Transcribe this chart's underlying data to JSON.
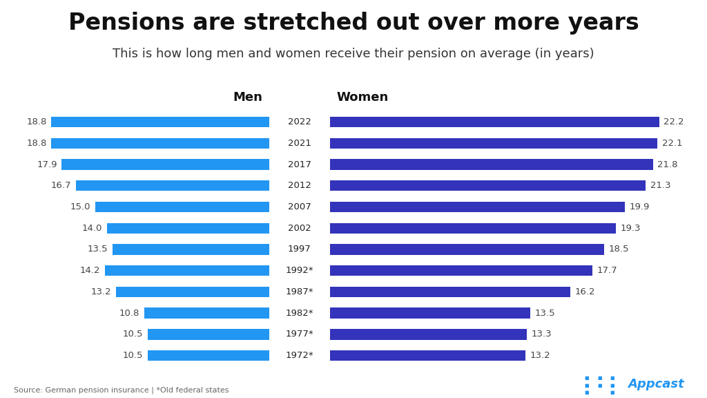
{
  "title": "Pensions are stretched out over more years",
  "subtitle": "This is how long men and women receive their pension on average (in years)",
  "years": [
    "2022",
    "2021",
    "2017",
    "2012",
    "2007",
    "2002",
    "1997",
    "1992*",
    "1987*",
    "1982*",
    "1977*",
    "1972*"
  ],
  "men_values": [
    18.8,
    18.8,
    17.9,
    16.7,
    15.0,
    14.0,
    13.5,
    14.2,
    13.2,
    10.8,
    10.5,
    10.5
  ],
  "women_values": [
    22.2,
    22.1,
    21.8,
    21.3,
    19.9,
    19.3,
    18.5,
    17.7,
    16.2,
    13.5,
    13.3,
    13.2
  ],
  "men_color": "#2196F3",
  "women_color": "#3333BB",
  "background_color": "#FFFFFF",
  "bar_height": 0.5,
  "men_label": "Men",
  "women_label": "Women",
  "source_text": "Source: German pension insurance | *Old federal states",
  "appcast_text": "Appcast",
  "title_fontsize": 24,
  "subtitle_fontsize": 13,
  "label_fontsize": 9.5,
  "header_fontsize": 13,
  "year_label_fontsize": 9.5,
  "men_max": 22,
  "women_max": 24,
  "title_color": "#111111",
  "subtitle_color": "#333333",
  "label_color": "#444444",
  "year_color": "#222222"
}
